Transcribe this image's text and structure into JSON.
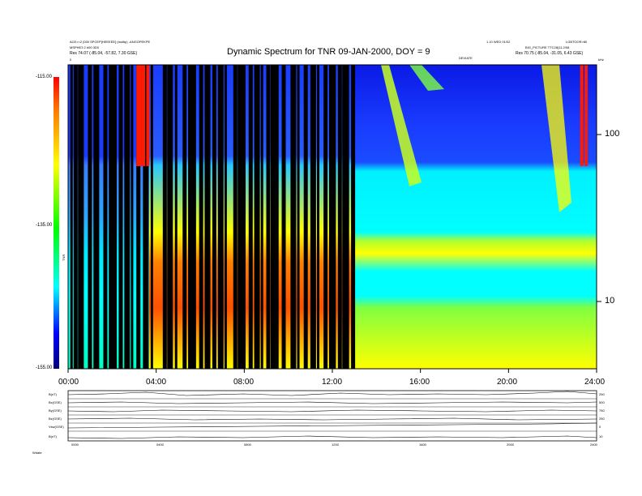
{
  "header": {
    "left_line1": "ACE>=2 [000 SPCEP]HEEEEE] (tooltip) -ANGOPEKPE",
    "left_line2": "MSPHE3 2 #00 3D0",
    "left_line3": "Res   74.07 (-85.04, -57.82, 7.30 GSE)",
    "right_line1": "1.10 WED 01/02",
    "right_line2": "LGBTOOR>80",
    "right_line3": "BIG_PICTURE TTC28(11.2/08",
    "right_line4": "Res   70.75 (-85.04, -31.05, 6.43 GSE)",
    "freq_unit": "kHz",
    "center_small": "DEVIATE",
    "left_small": "0",
    "title": "Dynamic Spectrum for TNR 09-JAN-2000, DOY = 9"
  },
  "colorbar": {
    "label": "TNR",
    "ticks": [
      "-115.00",
      "-135.00",
      "-155.00"
    ]
  },
  "chart_data": {
    "type": "heatmap",
    "title": "Dynamic Spectrum for TNR 09-JAN-2000, DOY = 9",
    "x_ticks": [
      "00:00",
      "04:00",
      "08:00",
      "12:00",
      "16:00",
      "20:00",
      "24:00"
    ],
    "y_right_ticks": [
      "100",
      "10"
    ],
    "y_scale": "log",
    "colorbar_range": [
      -155,
      -115
    ],
    "dark_column_hours": [
      0.1,
      0.25,
      0.45,
      0.6,
      0.9,
      1.15,
      1.3,
      1.6,
      1.85,
      2.1,
      2.3,
      2.55,
      2.85,
      3.1,
      3.4,
      3.75,
      4.3,
      4.5,
      4.85,
      5.2,
      5.45,
      5.7,
      5.95,
      6.2,
      6.35,
      6.55,
      6.8,
      7.1,
      7.5,
      7.7,
      7.95,
      8.2,
      8.45,
      8.75,
      9.0,
      9.2,
      9.45,
      9.7,
      10.1,
      10.4,
      10.7,
      11.0,
      11.3,
      11.6,
      11.85,
      12.05,
      12.25,
      12.45,
      12.65,
      12.85
    ],
    "red_column_hours": [
      3.1,
      3.2,
      3.35,
      3.55,
      23.25,
      23.45
    ]
  },
  "bottom_panel": {
    "row_labels": [
      "B(nT)",
      "Bx(GSE)",
      "By(GSE)",
      "Bz(GSE)",
      "Vsw(GSE)",
      "B(nT)"
    ],
    "right_values": [
      "250",
      "500",
      "750",
      "250",
      "0",
      "10"
    ],
    "x_ticks": [
      "0000",
      "0400",
      "0800",
      "1200",
      "1600",
      "2000",
      "2400"
    ],
    "footer": "Wdate"
  }
}
